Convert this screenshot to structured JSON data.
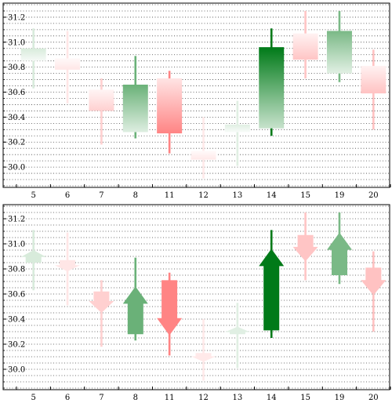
{
  "chart_data": [
    {
      "type": "candlestick",
      "style": "gradient-bar",
      "categories": [
        "5",
        "6",
        "7",
        "8",
        "11",
        "12",
        "13",
        "14",
        "15",
        "19",
        "20"
      ],
      "ohlc": [
        {
          "open": 30.85,
          "high": 31.11,
          "low": 30.63,
          "close": 30.95
        },
        {
          "open": 30.87,
          "high": 31.09,
          "low": 30.51,
          "close": 30.78
        },
        {
          "open": 30.62,
          "high": 30.71,
          "low": 30.18,
          "close": 30.45
        },
        {
          "open": 30.28,
          "high": 30.89,
          "low": 30.23,
          "close": 30.66
        },
        {
          "open": 30.71,
          "high": 30.77,
          "low": 30.11,
          "close": 30.27
        },
        {
          "open": 30.13,
          "high": 30.4,
          "low": 29.91,
          "close": 30.06
        },
        {
          "open": 30.28,
          "high": 30.53,
          "low": 30.01,
          "close": 30.34
        },
        {
          "open": 30.31,
          "high": 31.11,
          "low": 30.25,
          "close": 30.96
        },
        {
          "open": 31.07,
          "high": 31.25,
          "low": 30.71,
          "close": 30.86
        },
        {
          "open": 30.75,
          "high": 31.25,
          "low": 30.68,
          "close": 31.09
        },
        {
          "open": 30.81,
          "high": 30.94,
          "low": 30.3,
          "close": 30.59
        }
      ],
      "colors": {
        "up": "#007a18",
        "down": "#ff4a4a"
      },
      "ylim": [
        29.85,
        31.3
      ],
      "yticks": [
        "30.0",
        "30.2",
        "30.4",
        "30.6",
        "30.8",
        "31.0",
        "31.2"
      ],
      "grid": true
    },
    {
      "type": "candlestick",
      "style": "arrow",
      "categories": [
        "5",
        "6",
        "7",
        "8",
        "11",
        "12",
        "13",
        "14",
        "15",
        "19",
        "20"
      ],
      "ohlc": [
        {
          "open": 30.85,
          "high": 31.11,
          "low": 30.63,
          "close": 30.95
        },
        {
          "open": 30.87,
          "high": 31.09,
          "low": 30.51,
          "close": 30.78
        },
        {
          "open": 30.62,
          "high": 30.71,
          "low": 30.18,
          "close": 30.45
        },
        {
          "open": 30.28,
          "high": 30.89,
          "low": 30.23,
          "close": 30.66
        },
        {
          "open": 30.71,
          "high": 30.77,
          "low": 30.11,
          "close": 30.27
        },
        {
          "open": 30.13,
          "high": 30.4,
          "low": 29.91,
          "close": 30.06
        },
        {
          "open": 30.28,
          "high": 30.53,
          "low": 30.01,
          "close": 30.34
        },
        {
          "open": 30.31,
          "high": 31.11,
          "low": 30.25,
          "close": 30.96
        },
        {
          "open": 31.07,
          "high": 31.25,
          "low": 30.71,
          "close": 30.86
        },
        {
          "open": 30.75,
          "high": 31.25,
          "low": 30.68,
          "close": 31.09
        },
        {
          "open": 30.81,
          "high": 30.94,
          "low": 30.3,
          "close": 30.59
        }
      ],
      "colors": {
        "up": "#007a18",
        "down": "#ff4a4a"
      },
      "ylim": [
        29.85,
        31.3
      ],
      "yticks": [
        "30.0",
        "30.2",
        "30.4",
        "30.6",
        "30.8",
        "31.0",
        "31.2"
      ],
      "grid": true
    }
  ]
}
